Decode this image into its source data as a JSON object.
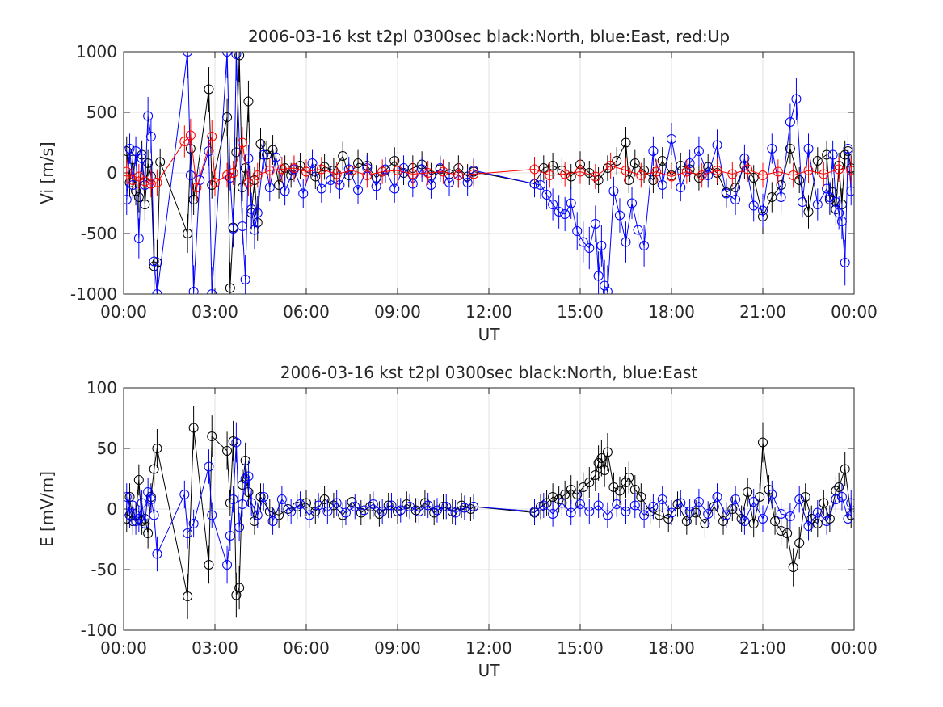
{
  "colors": {
    "north": "#000000",
    "east": "#0000ff",
    "up": "#ff0000",
    "grid": "#e0e0e0",
    "axis": "#262626"
  },
  "chart_data": [
    {
      "type": "line",
      "title": "2006-03-16 kst t2pl 0300sec black:North, blue:East, red:Up",
      "xlabel": "UT",
      "ylabel": "Vi [m/s]",
      "xlim": [
        0,
        24
      ],
      "ylim": [
        -1000,
        1000
      ],
      "grid": true,
      "legend": "none",
      "markers": "open-circle-with-errorbars",
      "xticks": [
        "00:00",
        "03:00",
        "06:00",
        "09:00",
        "12:00",
        "15:00",
        "18:00",
        "21:00",
        "00:00"
      ],
      "yticks": [
        "-1000",
        "-500",
        "0",
        "500",
        "1000"
      ],
      "series": [
        {
          "color": "black",
          "x": [
            0.1,
            0.2,
            0.3,
            0.4,
            0.5,
            0.6,
            0.7,
            0.8,
            0.9,
            1.0,
            1.1,
            1.2,
            2.1,
            2.2,
            2.3,
            2.8,
            2.9,
            3.4,
            3.5,
            3.6,
            3.7,
            3.8,
            3.9,
            4.0,
            4.1,
            4.2,
            4.3,
            4.4,
            4.5,
            4.7,
            4.9,
            5.1,
            5.3,
            5.5,
            5.8,
            6.0,
            6.3,
            6.6,
            6.9,
            7.2,
            7.4,
            7.7,
            8.0,
            8.3,
            8.6,
            8.9,
            9.2,
            9.5,
            9.8,
            10.1,
            10.4,
            10.7,
            11.0,
            11.3,
            11.5,
            13.5,
            13.8,
            14.1,
            14.4,
            14.7,
            15.0,
            15.3,
            15.6,
            15.9,
            16.2,
            16.5,
            16.6,
            16.8,
            17.1,
            17.4,
            17.7,
            18.0,
            18.3,
            18.6,
            18.9,
            19.2,
            19.5,
            19.8,
            20.1,
            20.4,
            20.7,
            21.0,
            21.3,
            21.6,
            21.9,
            22.2,
            22.5,
            22.8,
            23.1,
            23.2,
            23.3,
            23.4,
            23.5,
            23.6,
            23.7,
            23.8,
            23.9
          ],
          "y": [
            180,
            -80,
            110,
            -150,
            -200,
            150,
            -260,
            80,
            -30,
            -770,
            -740,
            90,
            -500,
            200,
            -220,
            690,
            -100,
            460,
            -950,
            -450,
            170,
            970,
            -120,
            40,
            590,
            -330,
            -60,
            -410,
            240,
            150,
            190,
            -100,
            40,
            -20,
            60,
            10,
            -30,
            50,
            20,
            140,
            -20,
            80,
            60,
            -40,
            20,
            100,
            0,
            40,
            70,
            -20,
            30,
            -10,
            40,
            -30,
            10,
            -90,
            40,
            60,
            20,
            -30,
            70,
            0,
            -60,
            40,
            100,
            250,
            -60,
            80,
            20,
            -60,
            100,
            -20,
            60,
            30,
            -40,
            50,
            0,
            -160,
            -120,
            60,
            -40,
            -360,
            -200,
            -100,
            200,
            -60,
            -320,
            100,
            150,
            -220,
            -160,
            -300,
            60,
            -260,
            150,
            180,
            40
          ]
        },
        {
          "color": "blue",
          "x": [
            0.1,
            0.2,
            0.3,
            0.4,
            0.5,
            0.6,
            0.7,
            0.8,
            0.9,
            1.0,
            1.1,
            2.1,
            2.2,
            2.3,
            2.5,
            2.8,
            2.9,
            3.4,
            3.5,
            3.6,
            3.7,
            3.9,
            4.0,
            4.1,
            4.2,
            4.3,
            4.4,
            4.6,
            4.8,
            5.0,
            5.3,
            5.6,
            5.9,
            6.2,
            6.5,
            6.8,
            7.1,
            7.4,
            7.7,
            8.0,
            8.3,
            8.6,
            8.9,
            9.2,
            9.5,
            9.8,
            10.1,
            10.4,
            10.7,
            11.0,
            11.3,
            11.5,
            13.5,
            13.7,
            13.9,
            14.1,
            14.3,
            14.5,
            14.7,
            14.9,
            15.1,
            15.3,
            15.5,
            15.6,
            15.7,
            15.8,
            15.9,
            16.1,
            16.3,
            16.5,
            16.7,
            16.9,
            17.1,
            17.4,
            17.7,
            18.0,
            18.3,
            18.6,
            18.9,
            19.2,
            19.5,
            19.8,
            20.1,
            20.4,
            20.7,
            21.0,
            21.3,
            21.6,
            21.9,
            22.1,
            22.3,
            22.5,
            22.8,
            23.1,
            23.2,
            23.3,
            23.4,
            23.5,
            23.6,
            23.7,
            23.8,
            23.9
          ],
          "y": [
            -220,
            200,
            -100,
            180,
            -540,
            120,
            -100,
            470,
            300,
            -730,
            -1000,
            1000,
            -20,
            -980,
            -60,
            180,
            -1000,
            1000,
            -40,
            -460,
            980,
            -440,
            -880,
            120,
            -300,
            -470,
            -330,
            150,
            -120,
            130,
            -150,
            30,
            -170,
            80,
            -130,
            -60,
            -100,
            30,
            -140,
            40,
            -110,
            30,
            -130,
            40,
            -90,
            30,
            -100,
            40,
            -80,
            -20,
            -80,
            20,
            -90,
            -100,
            -180,
            -260,
            -320,
            -340,
            -250,
            -480,
            -570,
            -620,
            -420,
            -850,
            -600,
            -930,
            -980,
            -150,
            -350,
            -570,
            -250,
            -470,
            -600,
            180,
            -100,
            280,
            -120,
            80,
            180,
            -20,
            230,
            -170,
            -220,
            120,
            -270,
            -310,
            200,
            -200,
            420,
            610,
            -240,
            200,
            -260,
            -130,
            -200,
            150,
            -240,
            -330,
            -400,
            -740,
            200,
            -150
          ]
        },
        {
          "color": "red",
          "x": [
            0.1,
            0.3,
            0.5,
            0.7,
            0.9,
            1.1,
            2.0,
            2.2,
            2.4,
            2.9,
            3.0,
            3.4,
            3.6,
            3.9,
            4.1,
            4.4,
            4.8,
            5.2,
            5.6,
            6.0,
            6.5,
            7.0,
            7.5,
            8.0,
            8.5,
            9.0,
            9.5,
            10.0,
            10.5,
            11.0,
            11.5,
            13.5,
            14.0,
            14.5,
            15.0,
            15.5,
            16.0,
            16.5,
            17.0,
            17.5,
            18.0,
            18.5,
            19.0,
            19.5,
            20.0,
            20.5,
            21.0,
            21.5,
            22.0,
            22.5,
            23.0,
            23.5,
            23.9
          ],
          "y": [
            10,
            -60,
            -30,
            -70,
            -90,
            -80,
            260,
            310,
            -120,
            300,
            -80,
            -20,
            0,
            250,
            -80,
            -20,
            20,
            30,
            40,
            10,
            30,
            -10,
            20,
            -20,
            10,
            20,
            -10,
            0,
            10,
            -20,
            -10,
            30,
            -20,
            -10,
            10,
            -30,
            60,
            20,
            -20,
            10,
            -30,
            10,
            -20,
            20,
            -10,
            30,
            -20,
            10,
            -20,
            20,
            -10,
            30,
            20
          ]
        }
      ]
    },
    {
      "type": "line",
      "title": "2006-03-16 kst t2pl 0300sec black:North, blue:East",
      "xlabel": "UT",
      "ylabel": "E [mV/m]",
      "xlim": [
        0,
        24
      ],
      "ylim": [
        -100,
        100
      ],
      "grid": true,
      "legend": "none",
      "markers": "open-circle-with-errorbars",
      "xticks": [
        "00:00",
        "03:00",
        "06:00",
        "09:00",
        "12:00",
        "15:00",
        "18:00",
        "21:00",
        "00:00"
      ],
      "yticks": [
        "-100",
        "-50",
        "0",
        "50",
        "100"
      ],
      "series": [
        {
          "color": "black",
          "x": [
            0.1,
            0.2,
            0.3,
            0.4,
            0.5,
            0.6,
            0.7,
            0.8,
            0.9,
            1.0,
            1.1,
            2.1,
            2.3,
            2.8,
            2.9,
            3.4,
            3.5,
            3.6,
            3.7,
            3.8,
            3.9,
            4.0,
            4.1,
            4.3,
            4.5,
            4.8,
            5.1,
            5.4,
            5.7,
            6.0,
            6.3,
            6.6,
            6.9,
            7.2,
            7.5,
            7.8,
            8.1,
            8.4,
            8.7,
            9.0,
            9.3,
            9.6,
            9.9,
            10.2,
            10.5,
            10.8,
            11.1,
            11.4,
            11.5,
            13.5,
            13.7,
            13.9,
            14.1,
            14.3,
            14.5,
            14.7,
            14.9,
            15.1,
            15.3,
            15.5,
            15.6,
            15.7,
            15.8,
            15.9,
            16.1,
            16.3,
            16.5,
            16.6,
            16.8,
            17.0,
            17.3,
            17.6,
            17.9,
            18.2,
            18.5,
            18.8,
            19.1,
            19.4,
            19.7,
            20.0,
            20.3,
            20.5,
            20.7,
            20.9,
            21.0,
            21.2,
            21.4,
            21.6,
            21.8,
            22.0,
            22.2,
            22.4,
            22.6,
            22.8,
            23.0,
            23.2,
            23.4,
            23.5,
            23.7,
            23.9
          ],
          "y": [
            -8,
            10,
            -10,
            -5,
            24,
            -10,
            -8,
            -20,
            10,
            33,
            50,
            -72,
            67,
            -46,
            60,
            48,
            5,
            56,
            -71,
            -65,
            20,
            40,
            14,
            -10,
            10,
            -2,
            -5,
            0,
            2,
            5,
            -2,
            8,
            3,
            -5,
            6,
            -3,
            2,
            -4,
            3,
            -2,
            4,
            -1,
            5,
            -3,
            2,
            -2,
            3,
            0,
            2,
            -3,
            2,
            5,
            10,
            8,
            12,
            16,
            12,
            18,
            22,
            28,
            38,
            42,
            32,
            47,
            18,
            15,
            22,
            26,
            16,
            10,
            -2,
            -5,
            -8,
            4,
            -10,
            -3,
            -12,
            2,
            -10,
            0,
            -8,
            14,
            -12,
            10,
            55,
            16,
            -10,
            -18,
            -20,
            -48,
            -28,
            10,
            -8,
            -12,
            5,
            -8,
            15,
            18,
            33,
            -5
          ]
        },
        {
          "color": "blue",
          "x": [
            0.1,
            0.2,
            0.3,
            0.4,
            0.5,
            0.6,
            0.7,
            0.8,
            0.9,
            1.0,
            1.1,
            2.0,
            2.1,
            2.3,
            2.8,
            2.9,
            3.4,
            3.5,
            3.6,
            3.7,
            3.8,
            3.9,
            4.0,
            4.1,
            4.2,
            4.4,
            4.6,
            4.9,
            5.2,
            5.5,
            5.8,
            6.1,
            6.4,
            6.7,
            7.0,
            7.3,
            7.6,
            7.9,
            8.2,
            8.5,
            8.8,
            9.1,
            9.4,
            9.7,
            10.0,
            10.3,
            10.6,
            10.9,
            11.2,
            11.5,
            13.5,
            13.8,
            14.1,
            14.4,
            14.7,
            15.0,
            15.3,
            15.6,
            15.9,
            16.2,
            16.5,
            16.8,
            17.1,
            17.4,
            17.7,
            18.0,
            18.3,
            18.6,
            18.9,
            19.2,
            19.5,
            19.8,
            20.1,
            20.4,
            20.7,
            21.0,
            21.3,
            21.6,
            21.9,
            22.2,
            22.5,
            22.8,
            23.1,
            23.4,
            23.6,
            23.8,
            23.9
          ],
          "y": [
            10,
            -5,
            3,
            -10,
            -8,
            5,
            -12,
            14,
            8,
            -5,
            -37,
            12,
            -20,
            -12,
            35,
            -5,
            -46,
            -22,
            8,
            55,
            -15,
            4,
            25,
            27,
            5,
            -5,
            10,
            -10,
            8,
            -2,
            4,
            -5,
            3,
            -2,
            5,
            -3,
            2,
            -1,
            4,
            -2,
            3,
            -1,
            2,
            -2,
            3,
            -1,
            2,
            -3,
            1,
            2,
            -2,
            3,
            -4,
            5,
            -3,
            4,
            -2,
            3,
            -5,
            4,
            -2,
            3,
            -5,
            2,
            8,
            -3,
            5,
            -2,
            6,
            -4,
            10,
            -5,
            8,
            -10,
            6,
            -8,
            12,
            -4,
            -6,
            8,
            -14,
            -3,
            -10,
            8,
            10,
            -8,
            5
          ]
        }
      ]
    }
  ]
}
